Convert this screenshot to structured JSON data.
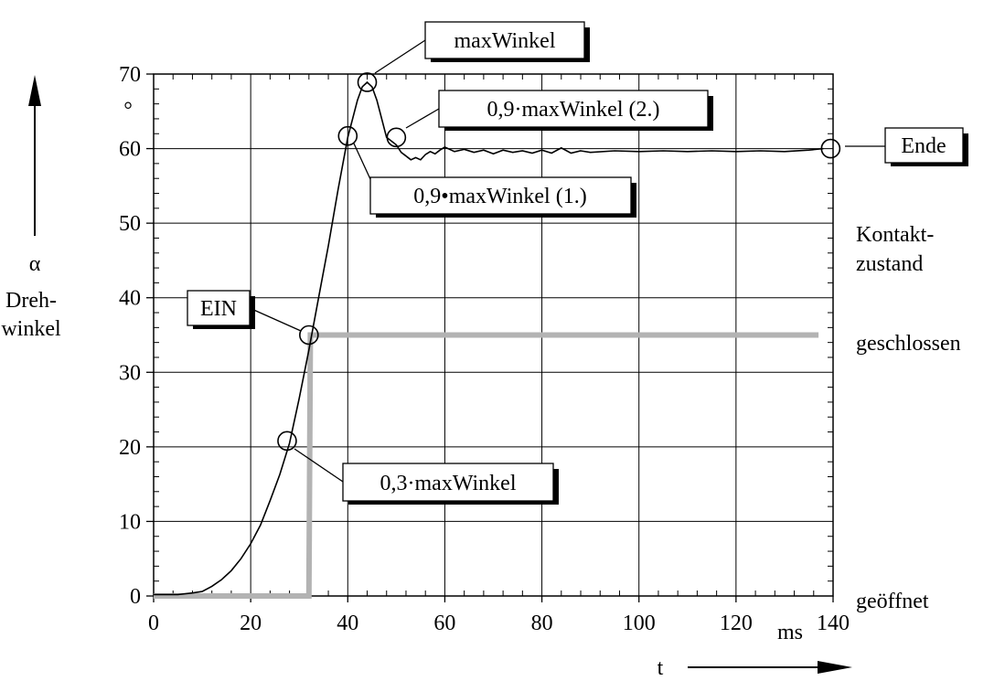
{
  "chart_data": {
    "type": "line",
    "x_ticks": [
      0,
      20,
      40,
      60,
      80,
      100,
      120,
      140
    ],
    "y_ticks": [
      0,
      10,
      20,
      30,
      40,
      50,
      60,
      70
    ],
    "xlim": [
      0,
      140
    ],
    "ylim": [
      0,
      70
    ],
    "grid": true,
    "x_unit": "ms",
    "x_symbol": "t",
    "y_symbol": "α",
    "y_unit": "°",
    "y_label_line1": "Dreh-",
    "y_label_line2": "winkel",
    "right_label_line1": "Kontakt-",
    "right_label_line2": "zustand",
    "state_closed": "geschlossen",
    "state_open": "geöffnet",
    "series": [
      {
        "key": "angle",
        "x": [
          0,
          5,
          8,
          10,
          12,
          14,
          16,
          18,
          20,
          22,
          24,
          26,
          28,
          30,
          32,
          34,
          36,
          38,
          40,
          42,
          43,
          44,
          45,
          46,
          47,
          48,
          49,
          50,
          51,
          52,
          53,
          54,
          55,
          56,
          57,
          58,
          59,
          60,
          62,
          64,
          66,
          68,
          70,
          72,
          74,
          76,
          78,
          80,
          82,
          84,
          86,
          88,
          90,
          95,
          100,
          105,
          110,
          115,
          120,
          125,
          130,
          135,
          138
        ],
        "y": [
          0.2,
          0.2,
          0.4,
          0.6,
          1.3,
          2.2,
          3.4,
          5.0,
          7.0,
          9.5,
          12.8,
          16.3,
          20.5,
          26.5,
          33.0,
          40.0,
          47.0,
          54.5,
          61.5,
          66.5,
          68.3,
          68.9,
          68.3,
          66.5,
          64.0,
          61.5,
          61.0,
          60.5,
          59.5,
          59.0,
          58.5,
          58.8,
          58.5,
          59.2,
          59.6,
          59.3,
          59.8,
          60.2,
          59.6,
          59.9,
          59.5,
          59.8,
          59.3,
          59.8,
          59.5,
          59.7,
          59.4,
          59.8,
          59.4,
          60.1,
          59.4,
          59.7,
          59.5,
          59.7,
          59.6,
          59.7,
          59.6,
          59.7,
          59.6,
          59.7,
          59.6,
          59.8,
          60.0
        ]
      },
      {
        "key": "contact",
        "x": [
          0,
          32,
          32.3,
          137
        ],
        "y": [
          0,
          0,
          35,
          35
        ]
      }
    ],
    "markers": [
      {
        "key": "m03",
        "x": 27.5,
        "y": 20.8
      },
      {
        "key": "mein",
        "x": 32.0,
        "y": 35.0
      },
      {
        "key": "m09a",
        "x": 40.0,
        "y": 61.7
      },
      {
        "key": "mmax",
        "x": 44.0,
        "y": 68.9
      },
      {
        "key": "m09b",
        "x": 50.0,
        "y": 61.5
      },
      {
        "key": "mend",
        "x": 139.5,
        "y": 60.0
      }
    ],
    "annotations": {
      "maxWinkel": "maxWinkel",
      "p09_2": "0,9·maxWinkel (2.)",
      "p09_1": "0,9•maxWinkel (1.)",
      "ende": "Ende",
      "ein": "EIN",
      "p03": "0,3·maxWinkel"
    }
  }
}
